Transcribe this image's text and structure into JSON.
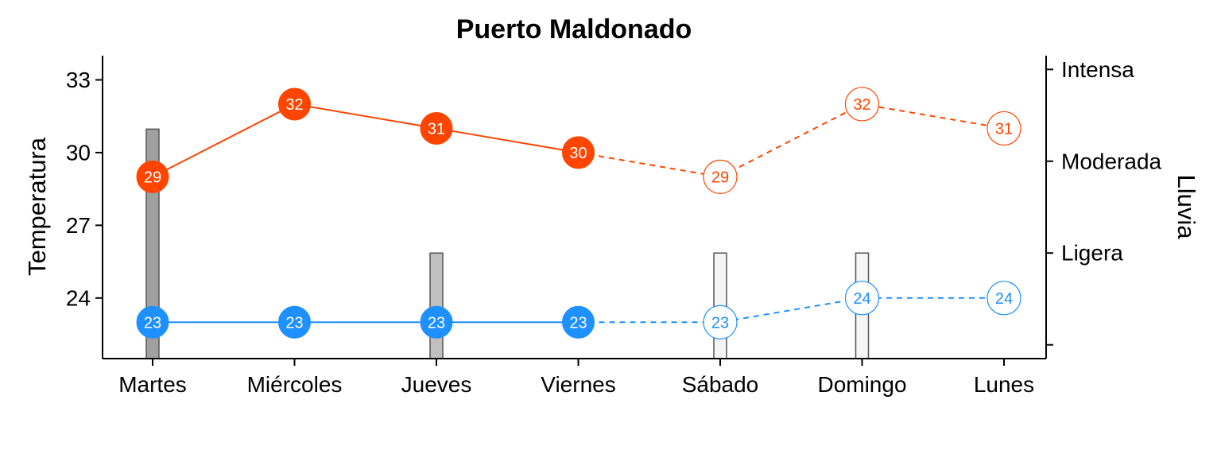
{
  "chart_data": {
    "type": "line",
    "title": "Puerto Maldonado",
    "categories": [
      "Martes",
      "Miércoles",
      "Jueves",
      "Viernes",
      "Sábado",
      "Domingo",
      "Lunes"
    ],
    "ylabel": "Temperatura",
    "ylabel_right": "Lluvia",
    "ylim": [
      21.5,
      34
    ],
    "yticks": [
      24,
      27,
      30,
      33
    ],
    "ytick_labels": [
      "24",
      "27",
      "30",
      "33"
    ],
    "right_axis": {
      "ticks": [
        0,
        1,
        2,
        3
      ],
      "tick_labels": [
        "",
        "Ligera",
        "Moderada",
        "Intensa"
      ],
      "ylim": [
        -0.15,
        3.15
      ]
    },
    "observed_count": 4,
    "series": [
      {
        "values": [
          29,
          32,
          31,
          30,
          29,
          32,
          31
        ],
        "color": "#FF4500"
      },
      {
        "values": [
          23,
          23,
          23,
          23,
          23,
          24,
          24
        ],
        "color": "#1E90FF"
      }
    ],
    "rain": {
      "values": [
        2.35,
        0,
        1.0,
        0,
        1.0,
        1.0,
        0
      ],
      "fills": [
        "#A0A0A0",
        "#A0A0A0",
        "#C0C0C0",
        "#C0C0C0",
        "#F5F5F5",
        "#F5F5F5",
        "#F5F5F5"
      ]
    },
    "grid": false,
    "legend": "none"
  }
}
